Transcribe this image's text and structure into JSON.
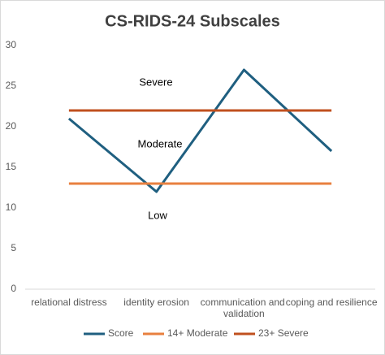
{
  "chart_data": {
    "type": "line",
    "title": "CS-RIDS-24 Subscales",
    "categories": [
      "relational distress",
      "identity erosion",
      "communication and validation",
      "coping and resilience"
    ],
    "series": [
      {
        "name": "Score",
        "color": "#1f5f80",
        "values": [
          21,
          12,
          27,
          17
        ]
      },
      {
        "name": "14+ Moderate",
        "color": "#e8803f",
        "values": [
          13,
          13,
          13,
          13
        ]
      },
      {
        "name": "23+ Severe",
        "color": "#c0501f",
        "values": [
          22,
          22,
          22,
          22
        ]
      }
    ],
    "annotations": [
      "Severe",
      "Moderate",
      "Low"
    ],
    "ylim": [
      0,
      30
    ],
    "yticks": [
      0,
      5,
      10,
      15,
      20,
      25,
      30
    ],
    "grid": false,
    "legend": "bottom"
  }
}
